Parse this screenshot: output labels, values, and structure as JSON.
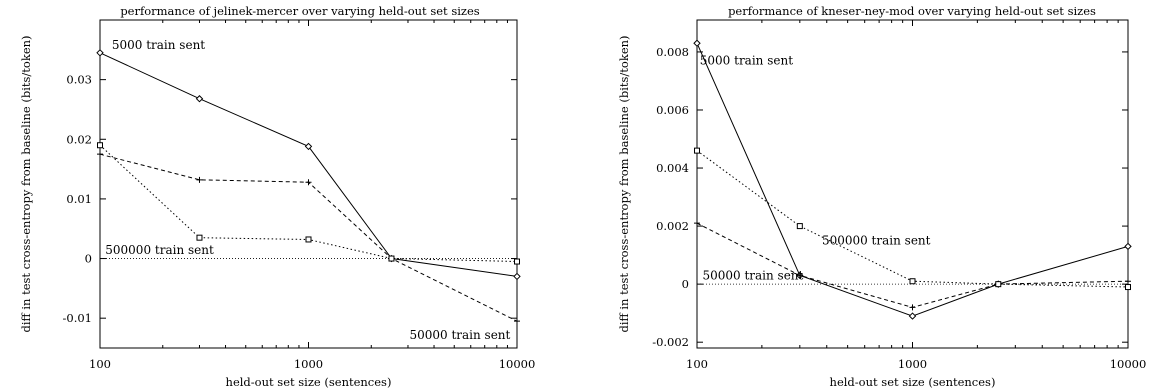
{
  "chart_data": [
    {
      "type": "line",
      "title": "performance of jelinek-mercer over varying held-out set sizes",
      "xlabel": "held-out set size (sentences)",
      "ylabel": "diff in test cross-entropy from baseline (bits/token)",
      "xscale": "log",
      "xlim": [
        100,
        10000
      ],
      "ylim": [
        -0.015,
        0.04
      ],
      "xticks": [
        100,
        1000,
        10000
      ],
      "xtick_labels": [
        "100",
        "1000",
        "10000"
      ],
      "yticks": [
        -0.01,
        0,
        0.01,
        0.02,
        0.03
      ],
      "ytick_labels": [
        "-0.01",
        "0",
        "0.01",
        "0.02",
        "0.03"
      ],
      "grid": false,
      "legend": "none",
      "baseline": 0,
      "series": [
        {
          "marker": "diamond",
          "dash": "solid",
          "x": [
            100,
            300,
            1000,
            2500,
            10000
          ],
          "y": [
            0.0345,
            0.0268,
            0.0188,
            0.0,
            -0.003
          ]
        },
        {
          "marker": "plus",
          "dash": "dashed",
          "x": [
            100,
            300,
            1000,
            2500,
            10000
          ],
          "y": [
            0.0175,
            0.0132,
            0.0128,
            0.0,
            -0.0105
          ]
        },
        {
          "marker": "square",
          "dash": "dotted",
          "x": [
            100,
            300,
            1000,
            2500,
            10000
          ],
          "y": [
            0.019,
            0.0035,
            0.0032,
            0.0,
            -0.0005
          ]
        }
      ],
      "annotations": [
        {
          "text": "5000 train sent",
          "x": 114,
          "y": 0.0358
        },
        {
          "text": "500000 train sent",
          "x": 106,
          "y": 0.0014
        },
        {
          "text": "50000 train sent",
          "x": 3050,
          "y": -0.0128
        }
      ]
    },
    {
      "type": "line",
      "title": "performance of kneser-ney-mod over varying held-out set sizes",
      "xlabel": "held-out set size (sentences)",
      "ylabel": "diff in test cross-entropy from baseline (bits/token)",
      "xscale": "log",
      "xlim": [
        100,
        10000
      ],
      "ylim": [
        -0.0022,
        0.0091
      ],
      "xticks": [
        100,
        1000,
        10000
      ],
      "xtick_labels": [
        "100",
        "1000",
        "10000"
      ],
      "yticks": [
        -0.002,
        0,
        0.002,
        0.004,
        0.006,
        0.008
      ],
      "ytick_labels": [
        "-0.002",
        "0",
        "0.002",
        "0.004",
        "0.006",
        "0.008"
      ],
      "grid": false,
      "legend": "none",
      "baseline": 0,
      "series": [
        {
          "marker": "diamond",
          "dash": "solid",
          "x": [
            100,
            300,
            1000,
            2500,
            10000
          ],
          "y": [
            0.0083,
            0.0003,
            -0.0011,
            0.0,
            0.0013
          ]
        },
        {
          "marker": "plus",
          "dash": "dashed",
          "x": [
            100,
            300,
            1000,
            2500,
            10000
          ],
          "y": [
            0.0021,
            0.0003,
            -0.0008,
            0.0,
            0.0001
          ]
        },
        {
          "marker": "square",
          "dash": "dotted",
          "x": [
            100,
            300,
            1000,
            2500,
            10000
          ],
          "y": [
            0.0046,
            0.002,
            0.0001,
            0.0,
            -0.0001
          ]
        }
      ],
      "annotations": [
        {
          "text": "5000 train sent",
          "x": 103,
          "y": 0.0077
        },
        {
          "text": "500000 train sent",
          "x": 380,
          "y": 0.0015
        },
        {
          "text": "50000 train sent",
          "x": 106,
          "y": 0.0003
        }
      ]
    }
  ]
}
